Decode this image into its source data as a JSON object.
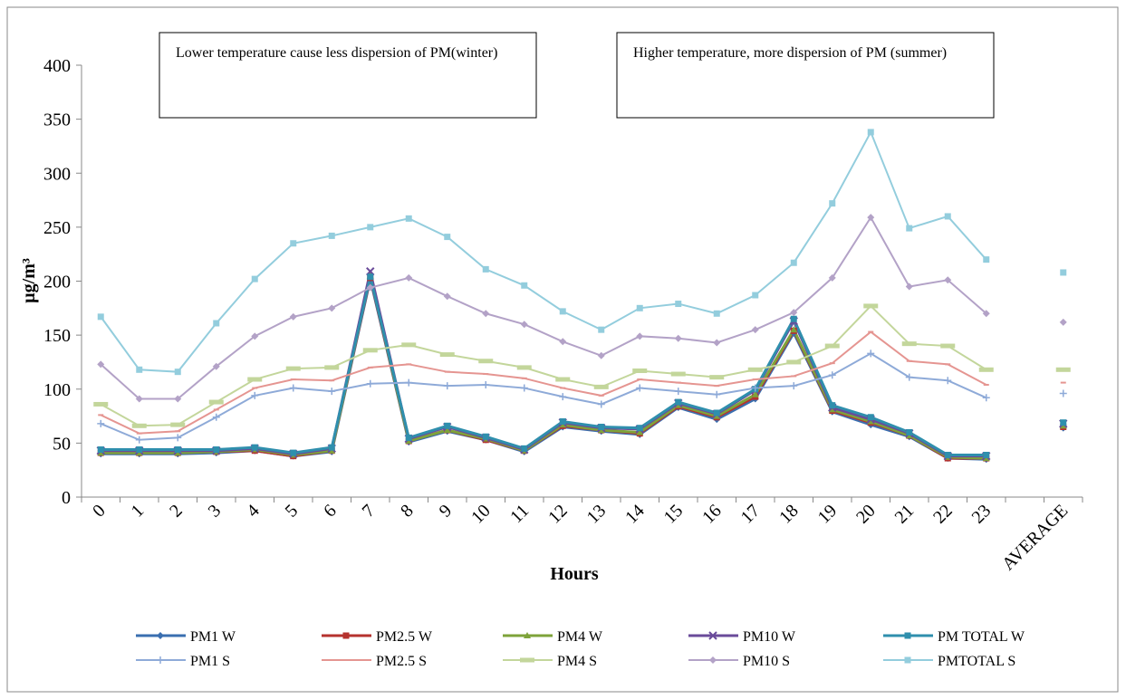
{
  "chart_data": {
    "type": "line",
    "ylabel": "µg/m³",
    "xlabel": "Hours",
    "annotations": [
      "Lower temperature cause less dispersion of PM(winter)",
      "Higher temperature, more dispersion of PM (summer)"
    ],
    "categories": [
      "0",
      "1",
      "2",
      "3",
      "4",
      "5",
      "6",
      "7",
      "8",
      "9",
      "10",
      "11",
      "12",
      "13",
      "14",
      "15",
      "16",
      "17",
      "18",
      "19",
      "20",
      "21",
      "22",
      "23",
      null,
      "AVERAGE"
    ],
    "ylim": [
      0,
      400
    ],
    "yticks": [
      0,
      50,
      100,
      150,
      200,
      250,
      300,
      350,
      400
    ],
    "grid": false,
    "legend": "bottom",
    "series": [
      {
        "name": "PM1 W",
        "color": "#3a6fb0",
        "marker": "diamond",
        "values": [
          40,
          40,
          40,
          41,
          43,
          38,
          42,
          202,
          51,
          61,
          53,
          42,
          65,
          61,
          58,
          83,
          72,
          91,
          152,
          79,
          67,
          56,
          36,
          35,
          null,
          64
        ]
      },
      {
        "name": "PM2.5 W",
        "color": "#b5322e",
        "marker": "square",
        "values": [
          41,
          41,
          41,
          42,
          43,
          38,
          43,
          203,
          52,
          62,
          53,
          43,
          66,
          62,
          59,
          84,
          74,
          93,
          154,
          80,
          69,
          57,
          36,
          36,
          null,
          65
        ]
      },
      {
        "name": "PM4 W",
        "color": "#7ea33a",
        "marker": "triangle",
        "values": [
          41,
          41,
          41,
          42,
          44,
          39,
          43,
          205,
          52,
          62,
          54,
          43,
          67,
          62,
          60,
          85,
          75,
          95,
          155,
          81,
          70,
          57,
          37,
          36,
          null,
          66
        ]
      },
      {
        "name": "PM10 W",
        "color": "#6a4b9a",
        "marker": "x",
        "values": [
          43,
          43,
          43,
          43,
          45,
          40,
          45,
          209,
          54,
          65,
          55,
          44,
          69,
          64,
          63,
          87,
          77,
          99,
          163,
          83,
          72,
          59,
          38,
          38,
          null,
          68
        ]
      },
      {
        "name": "PM TOTAL W",
        "color": "#2f8fad",
        "marker": "square",
        "values": [
          44,
          44,
          44,
          44,
          46,
          41,
          46,
          204,
          55,
          66,
          56,
          45,
          70,
          65,
          64,
          88,
          78,
          100,
          165,
          85,
          74,
          60,
          39,
          39,
          null,
          69
        ]
      },
      {
        "name": "PM1 S",
        "color": "#8eaad8",
        "marker": "plus",
        "values": [
          68,
          53,
          55,
          74,
          94,
          101,
          98,
          105,
          106,
          103,
          104,
          101,
          93,
          86,
          101,
          98,
          95,
          101,
          103,
          113,
          133,
          111,
          108,
          92,
          null,
          96
        ]
      },
      {
        "name": "PM2.5 S",
        "color": "#e59591",
        "marker": "dash",
        "values": [
          76,
          59,
          61,
          81,
          101,
          109,
          108,
          120,
          123,
          116,
          114,
          110,
          101,
          94,
          109,
          106,
          103,
          109,
          112,
          124,
          153,
          126,
          123,
          104,
          null,
          106
        ]
      },
      {
        "name": "PM4 S",
        "color": "#c3d69b",
        "marker": "bar",
        "values": [
          86,
          66,
          67,
          88,
          109,
          119,
          120,
          136,
          141,
          132,
          126,
          120,
          109,
          102,
          117,
          114,
          111,
          118,
          125,
          140,
          177,
          142,
          140,
          118,
          null,
          118
        ]
      },
      {
        "name": "PM10 S",
        "color": "#b3a2c7",
        "marker": "diamond",
        "values": [
          123,
          91,
          91,
          121,
          149,
          167,
          175,
          194,
          203,
          186,
          170,
          160,
          144,
          131,
          149,
          147,
          143,
          155,
          171,
          203,
          259,
          195,
          201,
          170,
          null,
          162
        ]
      },
      {
        "name": "PMTOTAL S",
        "color": "#93cddd",
        "marker": "square",
        "values": [
          167,
          118,
          116,
          161,
          202,
          235,
          242,
          250,
          258,
          241,
          211,
          196,
          172,
          155,
          175,
          179,
          170,
          187,
          217,
          272,
          338,
          249,
          260,
          220,
          null,
          208
        ]
      }
    ]
  }
}
